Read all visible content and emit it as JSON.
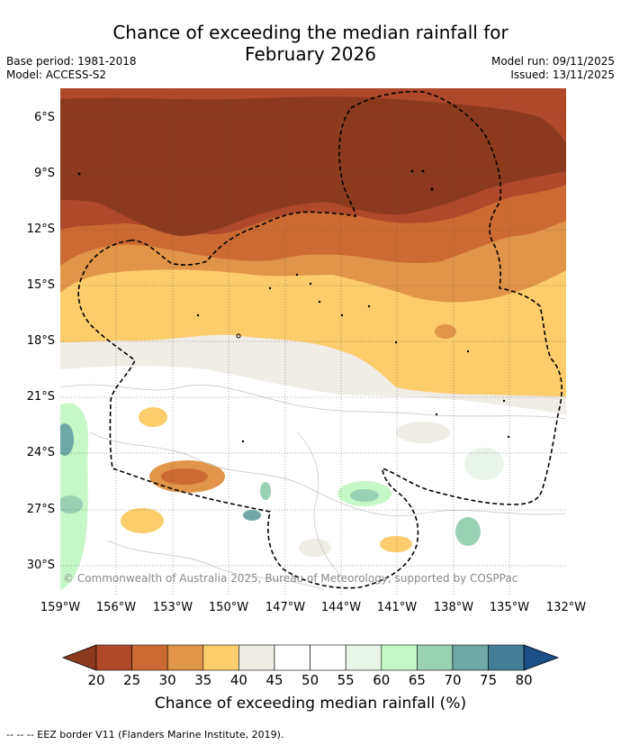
{
  "title_line1": "Chance of exceeding the median rainfall for",
  "title_line2": "February 2026",
  "base_period": "Base period: 1981-2018",
  "model": "Model: ACCESS-S2",
  "model_run": "Model run: 09/11/2025",
  "issued": "Issued: 13/11/2025",
  "copyright": "© Commonwealth of Australia 2025, Bureau of Meteorology, supported by COSPPac",
  "lat_labels": [
    "6°S",
    "9°S",
    "12°S",
    "15°S",
    "18°S",
    "21°S",
    "24°S",
    "27°S",
    "30°S"
  ],
  "lon_labels": [
    "159°W",
    "156°W",
    "153°W",
    "150°W",
    "147°W",
    "144°W",
    "141°W",
    "138°W",
    "135°W",
    "132°W"
  ],
  "colorbar": {
    "ticks": [
      "20",
      "25",
      "30",
      "35",
      "40",
      "45",
      "50",
      "55",
      "60",
      "65",
      "70",
      "75",
      "80"
    ],
    "colors": [
      "#8b3a1e",
      "#b0482a",
      "#cd6a34",
      "#e09548",
      "#fdcc6b",
      "#f0ece6",
      "#ffffff",
      "#ffffff",
      "#e8f5e8",
      "#c6f7c6",
      "#9ad0b4",
      "#6fa9a5",
      "#447d96",
      "#1a4f88"
    ],
    "label": "Chance of exceeding median rainfall (%)"
  },
  "footer": "-- -- -- EEZ border V11 (Flanders Marine Institute, 2019)."
}
